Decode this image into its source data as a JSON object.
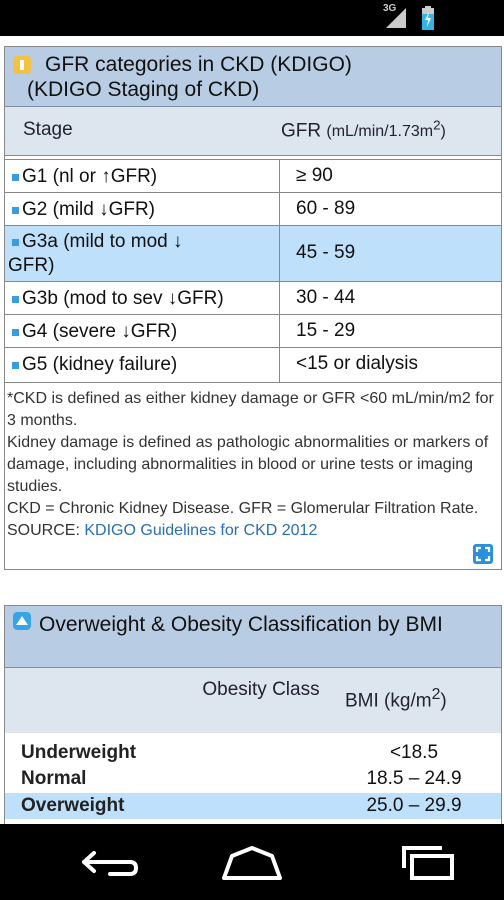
{
  "status_bar": {
    "signal_label": "3G",
    "colors": {
      "bg": "#000000",
      "icon": "#cccccc",
      "battery_charge": "#33b5e5"
    }
  },
  "gfr_card": {
    "title_line1": "GFR categories in CKD (KDIGO)",
    "title_line2": "(KDIGO Staging of CKD)",
    "header_icon": "collapse-toggle-icon",
    "col_stage": "Stage",
    "col_gfr": "GFR",
    "col_gfr_unit": "(mL/min/1.73m",
    "col_gfr_unit_sup": "2",
    "col_gfr_unit_end": ")",
    "rows": [
      {
        "stage": "G1 (nl or ↑GFR)",
        "gfr": "≥ 90",
        "highlighted": false
      },
      {
        "stage": "G2 (mild ↓GFR)",
        "gfr": "60 - 89",
        "highlighted": false
      },
      {
        "stage": "G3a (mild to mod ↓",
        "stage_line2": "GFR)",
        "gfr": "45 - 59",
        "highlighted": true
      },
      {
        "stage": "G3b (mod to sev ↓GFR)",
        "gfr": "30 - 44",
        "highlighted": false
      },
      {
        "stage": "G4 (severe ↓GFR)",
        "gfr": "15 - 29",
        "highlighted": false
      },
      {
        "stage": "G5 (kidney failure)",
        "gfr": "<15 or dialysis",
        "highlighted": false
      }
    ],
    "notes": [
      "*CKD is defined as either kidney damage or GFR <60 mL/min/m2 for 3 months.",
      "Kidney damage is defined as pathologic abnormalities or markers of damage, including abnormalities in blood or urine tests or imaging studies.",
      "CKD = Chronic Kidney Disease. GFR = Glomerular Filtration Rate."
    ],
    "source_label": "SOURCE:",
    "source_link": "KDIGO Guidelines for CKD 2012",
    "expand_icon": "expand-icon"
  },
  "bmi_card": {
    "title": "Overweight & Obesity Classification by BMI",
    "header_icon": "collapse-triangle-icon",
    "col_obesity": "Obesity Class",
    "col_bmi": "BMI (kg/m",
    "col_bmi_sup": "2",
    "col_bmi_end": ")",
    "rows": [
      {
        "category": "Underweight",
        "bmi": "<18.5",
        "highlighted": false
      },
      {
        "category": "Normal",
        "bmi": "18.5 – 24.9",
        "highlighted": false
      },
      {
        "category": "Overweight",
        "bmi": "25.0 – 29.9",
        "highlighted": true
      }
    ]
  },
  "nav_bar": {
    "back_icon": "back-icon",
    "home_icon": "home-icon",
    "recents_icon": "recents-icon"
  },
  "colors": {
    "header_bg": "#b8cde4",
    "colhead_bg": "#dde5ef",
    "highlight_bg": "#bfe0fb",
    "bullet": "#3b9be0",
    "link": "#2a6eb4",
    "icon_yellow": "#f2c244"
  }
}
